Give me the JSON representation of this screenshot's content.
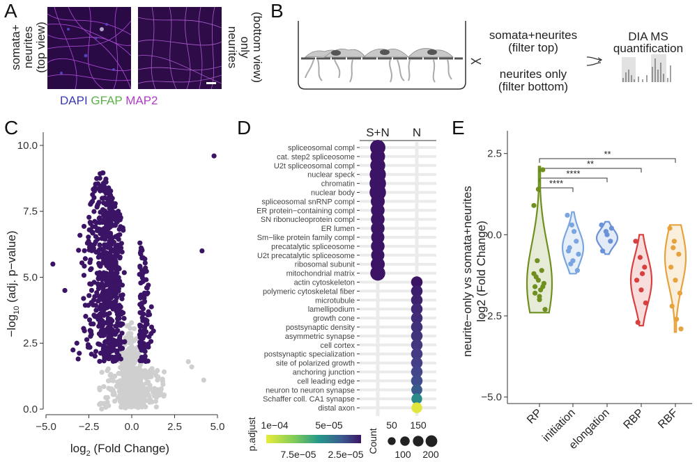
{
  "panels": {
    "a": "A",
    "b": "B",
    "c": "C",
    "d": "D",
    "e": "E"
  },
  "panel_a": {
    "left_label": [
      "somata+",
      "neurites",
      "(top view)"
    ],
    "right_label": [
      "neurites",
      "only",
      "(bottom view)"
    ],
    "stains": [
      {
        "text": "DAPI",
        "color": "#3a3ab8"
      },
      {
        "text": "GFAP",
        "color": "#5bb04a"
      },
      {
        "text": "MAP2",
        "color": "#b03cc8"
      }
    ]
  },
  "panel_b": {
    "top_label": [
      "somata+neurites",
      "(filter top)"
    ],
    "bottom_label": [
      "neurites only",
      "(filter bottom)"
    ],
    "ms_label": [
      "DIA MS",
      "quantification"
    ]
  },
  "chart_data": [
    {
      "id": "volcano",
      "type": "scatter",
      "xlabel_main": "log",
      "xlabel_sub": "2",
      "xlabel_rest": " (Fold Change)",
      "ylabel_main": "−log",
      "ylabel_sub": "10",
      "ylabel_rest": " (adj. p−value)",
      "xlim": [
        -5,
        5
      ],
      "ylim": [
        0,
        10.5
      ],
      "xticks": [
        -5,
        -2.5,
        0,
        2.5,
        5
      ],
      "xtick_labels": [
        "−5.0",
        "−2.5",
        "0.0",
        "2.5",
        "5.0"
      ],
      "yticks": [
        0,
        2.5,
        5,
        7.5,
        10
      ],
      "ytick_labels": [
        "0.0",
        "2.5",
        "5.0",
        "7.5",
        "10.0"
      ],
      "colors": {
        "significant": "#3b1466",
        "nonsignificant": "#cfcfcf"
      },
      "outliers": [
        {
          "x": 4.8,
          "y": 9.6
        },
        {
          "x": 4.1,
          "y": 6.0
        },
        {
          "x": -4.6,
          "y": 5.5
        },
        {
          "x": -3.9,
          "y": 4.5
        },
        {
          "x": 3.5,
          "y": 1.6
        },
        {
          "x": 4.2,
          "y": 1.1
        },
        {
          "x": -3.2,
          "y": 2.5
        },
        {
          "x": 3.3,
          "y": 1.8
        }
      ]
    },
    {
      "id": "go_dotplot",
      "type": "scatter",
      "columns": [
        "S+N",
        "N"
      ],
      "terms": [
        "spliceosomal compl",
        "cat. step2 spliceosome",
        "U2t spliceosomal compl",
        "nuclear speck",
        "chromatin",
        "nuclear body",
        "spliceosomal snRNP compl",
        "ER protein−containing compl",
        "SN ribonucleoprotein compl",
        "ER lumen",
        "Sm−like protein family compl",
        "precatalytic spliceosome",
        "U2t precatalytic spliceosome",
        "ribosomal subunit",
        "mitochondrial matrix",
        "actin cytoskeleton",
        "polymeric cytoskeletal fiber",
        "microtubule",
        "lamellipodium",
        "growth cone",
        "postsynaptic density",
        "asymmetric synapse",
        "cell cortex",
        "postsynaptic specialization",
        "site of polarized growth",
        "anchoring junction",
        "cell leading edge",
        "neuron to neuron synapse",
        "Schaffer coll. CA1 synapse",
        "distal axon"
      ],
      "dots": [
        {
          "col": 0,
          "count": 160,
          "color": "#3b1466"
        },
        {
          "col": 0,
          "count": 140,
          "color": "#3b1466"
        },
        {
          "col": 0,
          "count": 150,
          "color": "#3b1466"
        },
        {
          "col": 0,
          "count": 190,
          "color": "#3b1466"
        },
        {
          "col": 0,
          "count": 200,
          "color": "#3b1466"
        },
        {
          "col": 0,
          "count": 200,
          "color": "#3b1466"
        },
        {
          "col": 0,
          "count": 120,
          "color": "#3b1466"
        },
        {
          "col": 0,
          "count": 110,
          "color": "#3b1466"
        },
        {
          "col": 0,
          "count": 110,
          "color": "#3b1466"
        },
        {
          "col": 0,
          "count": 110,
          "color": "#3b1466"
        },
        {
          "col": 0,
          "count": 100,
          "color": "#3b1466"
        },
        {
          "col": 0,
          "count": 110,
          "color": "#3b1466"
        },
        {
          "col": 0,
          "count": 100,
          "color": "#3b1466"
        },
        {
          "col": 0,
          "count": 120,
          "color": "#3b1466"
        },
        {
          "col": 0,
          "count": 150,
          "color": "#3b1466"
        },
        {
          "col": 1,
          "count": 60,
          "color": "#3b1466"
        },
        {
          "col": 1,
          "count": 60,
          "color": "#3c1d6e"
        },
        {
          "col": 1,
          "count": 60,
          "color": "#3e2270"
        },
        {
          "col": 1,
          "count": 60,
          "color": "#3f2875"
        },
        {
          "col": 1,
          "count": 60,
          "color": "#402c78"
        },
        {
          "col": 1,
          "count": 60,
          "color": "#41307a"
        },
        {
          "col": 1,
          "count": 60,
          "color": "#42337d"
        },
        {
          "col": 1,
          "count": 60,
          "color": "#433880"
        },
        {
          "col": 1,
          "count": 60,
          "color": "#433c84"
        },
        {
          "col": 1,
          "count": 60,
          "color": "#434088"
        },
        {
          "col": 1,
          "count": 60,
          "color": "#42468a"
        },
        {
          "col": 1,
          "count": 60,
          "color": "#3f4d8c"
        },
        {
          "col": 1,
          "count": 50,
          "color": "#3a5a8c"
        },
        {
          "col": 1,
          "count": 45,
          "color": "#2c8a88"
        },
        {
          "col": 1,
          "count": 45,
          "color": "#e0e63c"
        }
      ],
      "color_legend": {
        "title": "p.adjust",
        "top_labels": [
          "1e−04",
          "5e−05"
        ],
        "bottom_labels": [
          "7.5e−05",
          "2.5e−05"
        ],
        "gradient": [
          "#e8ec3a",
          "#7fcb5a",
          "#25998a",
          "#3b5a8e",
          "#3b1466"
        ]
      },
      "size_legend": {
        "title": "Count",
        "top_labels": [
          "50",
          "150"
        ],
        "bottom_labels": [
          "100",
          "200"
        ],
        "sizes": [
          50,
          100,
          150,
          200
        ]
      }
    },
    {
      "id": "violin",
      "type": "scatter",
      "categories": [
        "RP",
        "initiation",
        "elongation",
        "RBP",
        "RBF"
      ],
      "colors": [
        "#6f8f1e",
        "#7aa6e0",
        "#6a92d8",
        "#d84040",
        "#e6a23c"
      ],
      "ylabel_lines": [
        "neurite−only vs somata+neurites",
        "log2 (Fold Change)"
      ],
      "ylim": [
        -5.2,
        3.2
      ],
      "yticks": [
        2.5,
        0,
        -2.5,
        -5
      ],
      "ytick_labels": [
        "2.5",
        "0.0",
        "−2.5",
        "−5.0"
      ],
      "medians": [
        -1.5,
        -0.4,
        -0.1,
        -1.4,
        -0.7
      ],
      "ranges": [
        [
          -2.4,
          2.1
        ],
        [
          -1.2,
          0.7
        ],
        [
          -0.6,
          0.4
        ],
        [
          -2.8,
          0.0
        ],
        [
          -3.0,
          0.3
        ]
      ],
      "points": [
        [
          -1.2,
          -1.4,
          -1.6,
          -1.8,
          -2.0,
          -1.5,
          -1.3,
          -1.7,
          -2.3,
          -0.8,
          -1.1,
          0.9,
          1.4,
          2.0,
          -1.6,
          -1.9
        ],
        [
          0.6,
          0.3,
          -0.2,
          -0.5,
          -0.8,
          -1.1,
          -0.4,
          0.1,
          -0.6,
          -0.9
        ],
        [
          0.3,
          0.1,
          -0.2,
          -0.5,
          0.0,
          0.2
        ],
        [
          -0.2,
          -0.7,
          -1.0,
          -1.4,
          -1.7,
          -2.1,
          -2.7,
          -1.2
        ],
        [
          0.2,
          -0.2,
          -0.6,
          -1.0,
          -1.4,
          -1.8,
          -2.2,
          -2.6,
          -2.9,
          -0.4
        ]
      ],
      "significance": [
        {
          "from": 0,
          "to": 1,
          "label": "****"
        },
        {
          "from": 0,
          "to": 2,
          "label": "****"
        },
        {
          "from": 0,
          "to": 3,
          "label": "**"
        },
        {
          "from": 0,
          "to": 4,
          "label": "**"
        }
      ]
    }
  ]
}
